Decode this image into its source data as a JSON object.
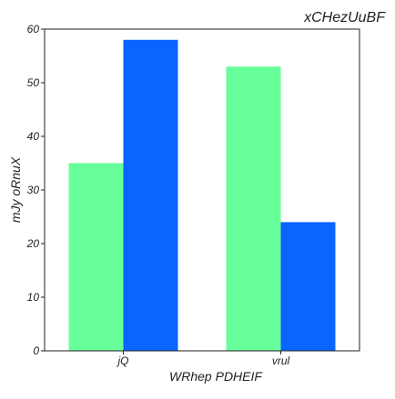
{
  "chart_data": {
    "type": "bar",
    "title": "xCHezUuBF",
    "xlabel": "WRhep PDHEIF",
    "ylabel": "mJy oRnuX",
    "categories": [
      "jQ",
      "vrul"
    ],
    "series": [
      {
        "values": [
          35,
          53
        ],
        "color": "#66ff99"
      },
      {
        "values": [
          58,
          24
        ],
        "color": "#0a64ff"
      }
    ],
    "ylim": [
      0,
      60
    ],
    "yticks": [
      "0",
      "10",
      "20",
      "30",
      "40",
      "50",
      "60"
    ],
    "grid": false,
    "legend": "none",
    "title_position": "top-right"
  }
}
